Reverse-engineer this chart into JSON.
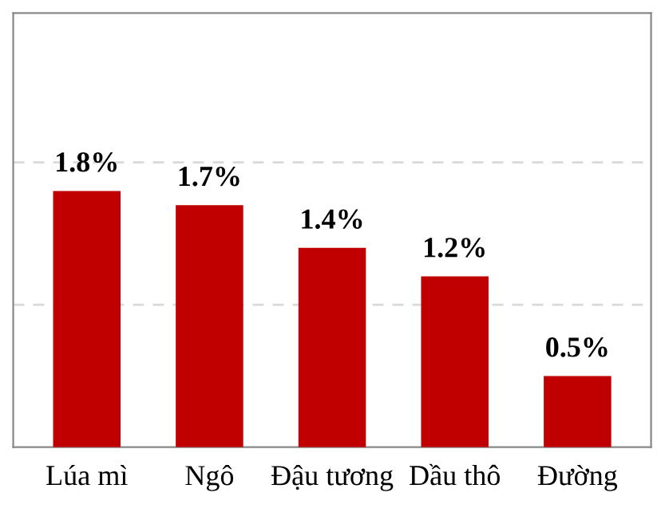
{
  "chart_data": {
    "type": "bar",
    "categories": [
      "Lúa mì",
      "Ngô",
      "Đậu tương",
      "Dầu thô",
      "Đường"
    ],
    "values": [
      1.8,
      1.7,
      1.4,
      1.2,
      0.5
    ],
    "value_labels": [
      "1.8%",
      "1.7%",
      "1.4%",
      "1.2%",
      "0.5%"
    ],
    "color": "#c00000",
    "ylim": [
      0,
      3.05
    ],
    "ref_lines": [
      {
        "axis": "y",
        "value": 1,
        "color": "#d9d9d9",
        "line_style": "dashed"
      },
      {
        "axis": "y",
        "value": 2,
        "color": "#d9d9d9",
        "line_style": "dashed"
      }
    ]
  }
}
